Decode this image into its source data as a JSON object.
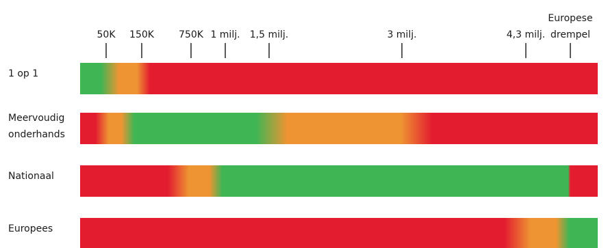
{
  "chart_data": {
    "type": "heatmap",
    "title": "",
    "xlabel": "",
    "ylabel": "",
    "colors": {
      "red": "#e31d2f",
      "orange": "#ee9433",
      "green": "#3fb553"
    },
    "ticks": [
      {
        "label": "50K",
        "value": 50000
      },
      {
        "label": "150K",
        "value": 150000
      },
      {
        "label": "750K",
        "value": 750000
      },
      {
        "label": "1 milj.",
        "value": 1000000
      },
      {
        "label": "1,5 milj.",
        "value": 1500000
      },
      {
        "label": "3 milj.",
        "value": 3000000
      },
      {
        "label": "4,3 milj.",
        "value": 4300000
      },
      {
        "label": [
          "Europese",
          "drempel"
        ],
        "value": "Europese drempel"
      }
    ],
    "rows": [
      {
        "label": [
          "1 op 1"
        ],
        "stops": [
          {
            "at": 0.0,
            "color": "green"
          },
          {
            "at": 0.04,
            "color": "green"
          },
          {
            "at": 0.075,
            "color": "orange"
          },
          {
            "at": 0.11,
            "color": "orange"
          },
          {
            "at": 0.135,
            "color": "red"
          },
          {
            "at": 1.0,
            "color": "red"
          }
        ]
      },
      {
        "label": [
          "Meervoudig",
          "onderhands"
        ],
        "stops": [
          {
            "at": 0.0,
            "color": "red"
          },
          {
            "at": 0.03,
            "color": "red"
          },
          {
            "at": 0.055,
            "color": "orange"
          },
          {
            "at": 0.08,
            "color": "orange"
          },
          {
            "at": 0.105,
            "color": "green"
          },
          {
            "at": 0.34,
            "color": "green"
          },
          {
            "at": 0.4,
            "color": "orange"
          },
          {
            "at": 0.62,
            "color": "orange"
          },
          {
            "at": 0.68,
            "color": "red"
          },
          {
            "at": 1.0,
            "color": "red"
          }
        ]
      },
      {
        "label": [
          "Nationaal"
        ],
        "stops": [
          {
            "at": 0.0,
            "color": "red"
          },
          {
            "at": 0.17,
            "color": "red"
          },
          {
            "at": 0.21,
            "color": "orange"
          },
          {
            "at": 0.25,
            "color": "orange"
          },
          {
            "at": 0.275,
            "color": "green"
          },
          {
            "at": 0.943,
            "color": "green"
          },
          {
            "at": 0.947,
            "color": "red"
          },
          {
            "at": 1.0,
            "color": "red"
          }
        ]
      },
      {
        "label": [
          "Europees"
        ],
        "stops": [
          {
            "at": 0.0,
            "color": "red"
          },
          {
            "at": 0.82,
            "color": "red"
          },
          {
            "at": 0.87,
            "color": "orange"
          },
          {
            "at": 0.92,
            "color": "orange"
          },
          {
            "at": 0.945,
            "color": "green"
          },
          {
            "at": 1.0,
            "color": "green"
          }
        ]
      }
    ]
  }
}
